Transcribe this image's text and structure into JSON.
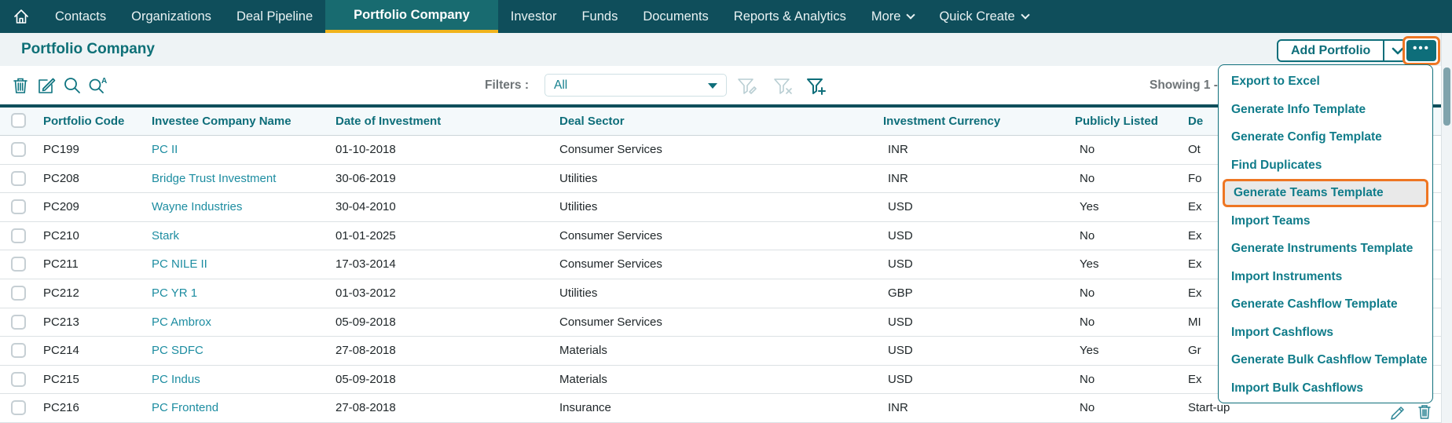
{
  "colors": {
    "nav_bg": "#0f4e5b",
    "nav_active_bg": "#186b70",
    "active_underline": "#f0b31c",
    "accent_teal": "#0e6e7a",
    "link_teal": "#1d8da1",
    "highlight_orange": "#ee7623",
    "page_bg": "#eef3f5"
  },
  "nav": {
    "items": [
      {
        "label": "Contacts",
        "active": false,
        "chevron": false
      },
      {
        "label": "Organizations",
        "active": false,
        "chevron": false
      },
      {
        "label": "Deal Pipeline",
        "active": false,
        "chevron": false
      },
      {
        "label": "Portfolio Company",
        "active": true,
        "chevron": false
      },
      {
        "label": "Investor",
        "active": false,
        "chevron": false
      },
      {
        "label": "Funds",
        "active": false,
        "chevron": false
      },
      {
        "label": "Documents",
        "active": false,
        "chevron": false
      },
      {
        "label": "Reports & Analytics",
        "active": false,
        "chevron": false
      },
      {
        "label": "More",
        "active": false,
        "chevron": true
      },
      {
        "label": "Quick Create",
        "active": false,
        "chevron": true
      }
    ]
  },
  "header": {
    "title": "Portfolio Company",
    "add_button_label": "Add Portfolio",
    "more_button_label": "•••"
  },
  "toolbar": {
    "filters_label": "Filters :",
    "filter_selected": "All",
    "showing_text": "Showing 1 -",
    "icons": [
      "delete-icon",
      "edit-icon",
      "search-icon",
      "advanced-search-icon",
      "filter-edit-icon",
      "filter-clear-icon",
      "filter-add-icon"
    ]
  },
  "menu": {
    "items": [
      {
        "label": "Export to Excel",
        "highlighted": false
      },
      {
        "label": "Generate Info Template",
        "highlighted": false
      },
      {
        "label": "Generate Config Template",
        "highlighted": false
      },
      {
        "label": "Find Duplicates",
        "highlighted": false
      },
      {
        "label": "Generate Teams Template",
        "highlighted": true
      },
      {
        "label": "Import Teams",
        "highlighted": false
      },
      {
        "label": "Generate Instruments Template",
        "highlighted": false
      },
      {
        "label": "Import Instruments",
        "highlighted": false
      },
      {
        "label": "Generate Cashflow Template",
        "highlighted": false
      },
      {
        "label": "Import Cashflows",
        "highlighted": false
      },
      {
        "label": "Generate Bulk Cashflow Template",
        "highlighted": false
      },
      {
        "label": "Import Bulk Cashflows",
        "highlighted": false
      }
    ]
  },
  "table": {
    "columns": [
      "Portfolio Code",
      "Investee Company Name",
      "Date of Investment",
      "Deal Sector",
      "Investment Currency",
      "Publicly Listed",
      "De"
    ],
    "rows": [
      {
        "code": "PC199",
        "name": "PC II",
        "date": "01-10-2018",
        "sector": "Consumer Services",
        "currency": "INR",
        "listed": "No",
        "type": "Ot"
      },
      {
        "code": "PC208",
        "name": "Bridge Trust Investment",
        "date": "30-06-2019",
        "sector": "Utilities",
        "currency": "INR",
        "listed": "No",
        "type": "Fo"
      },
      {
        "code": "PC209",
        "name": "Wayne Industries",
        "date": "30-04-2010",
        "sector": "Utilities",
        "currency": "USD",
        "listed": "Yes",
        "type": "Ex"
      },
      {
        "code": "PC210",
        "name": "Stark",
        "date": "01-01-2025",
        "sector": "Consumer Services",
        "currency": "USD",
        "listed": "No",
        "type": "Ex"
      },
      {
        "code": "PC211",
        "name": "PC NILE II",
        "date": "17-03-2014",
        "sector": "Consumer Services",
        "currency": "USD",
        "listed": "Yes",
        "type": "Ex"
      },
      {
        "code": "PC212",
        "name": "PC YR 1",
        "date": "01-03-2012",
        "sector": "Utilities",
        "currency": "GBP",
        "listed": "No",
        "type": "Ex"
      },
      {
        "code": "PC213",
        "name": "PC Ambrox",
        "date": "05-09-2018",
        "sector": "Consumer Services",
        "currency": "USD",
        "listed": "No",
        "type": "MI"
      },
      {
        "code": "PC214",
        "name": "PC SDFC",
        "date": "27-08-2018",
        "sector": "Materials",
        "currency": "USD",
        "listed": "Yes",
        "type": "Gr"
      },
      {
        "code": "PC215",
        "name": "PC Indus",
        "date": "05-09-2018",
        "sector": "Materials",
        "currency": "USD",
        "listed": "No",
        "type": "Ex"
      },
      {
        "code": "PC216",
        "name": "PC Frontend",
        "date": "27-08-2018",
        "sector": "Insurance",
        "currency": "INR",
        "listed": "No",
        "type": "Start-up"
      }
    ]
  }
}
